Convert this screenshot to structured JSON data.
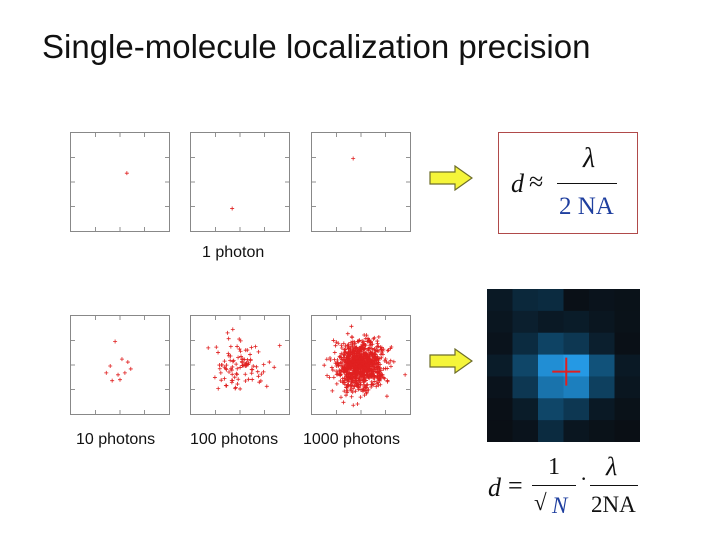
{
  "title": "Single-molecule localization precision",
  "captions": {
    "one_photon": "1 photon",
    "ten_photons": "10 photons",
    "hundred_photons": "100 photons",
    "thousand_photons": "1000 photons"
  },
  "formula_top": {
    "lhs": "d",
    "approx": "≈",
    "numerator": "λ",
    "denominator": "2 NA"
  },
  "formula_bottom": {
    "lhs": "d",
    "equals": "=",
    "num1": "1",
    "den1_root": "√",
    "den1_var": "N",
    "dot": "·",
    "num2": "λ",
    "den2": "2NA"
  },
  "colors": {
    "marker": "#e02020",
    "arrow_fill": "#f5f53a",
    "arrow_stroke": "#6d6d2a",
    "formula_border": "#b04a4a",
    "pixel_cross": "#e02020"
  },
  "panels": [
    {
      "photons": 1,
      "points": [
        [
          0.57,
          0.41
        ]
      ]
    },
    {
      "photons": 1,
      "points": [
        [
          0.42,
          0.77
        ]
      ]
    },
    {
      "photons": 1,
      "points": [
        [
          0.42,
          0.26
        ]
      ]
    },
    {
      "photons": 10,
      "points": [
        [
          0.45,
          0.26
        ],
        [
          0.52,
          0.44
        ],
        [
          0.4,
          0.51
        ],
        [
          0.58,
          0.47
        ],
        [
          0.36,
          0.58
        ],
        [
          0.48,
          0.6
        ],
        [
          0.55,
          0.58
        ],
        [
          0.42,
          0.66
        ],
        [
          0.61,
          0.54
        ],
        [
          0.5,
          0.65
        ]
      ]
    },
    {
      "photons": 100,
      "seed": 7,
      "count": 100,
      "spread": 0.13
    },
    {
      "photons": 1000,
      "seed": 13,
      "count": 1000,
      "spread": 0.12
    }
  ],
  "pixel_intensities": [
    [
      0.1,
      0.2,
      0.22,
      0.04,
      0.06,
      0.05
    ],
    [
      0.08,
      0.14,
      0.1,
      0.12,
      0.08,
      0.05
    ],
    [
      0.06,
      0.22,
      0.38,
      0.3,
      0.14,
      0.04
    ],
    [
      0.12,
      0.4,
      0.88,
      0.95,
      0.48,
      0.1
    ],
    [
      0.06,
      0.3,
      0.7,
      0.78,
      0.36,
      0.08
    ],
    [
      0.04,
      0.12,
      0.4,
      0.3,
      0.1,
      0.05
    ],
    [
      0.03,
      0.06,
      0.22,
      0.08,
      0.05,
      0.03
    ]
  ]
}
